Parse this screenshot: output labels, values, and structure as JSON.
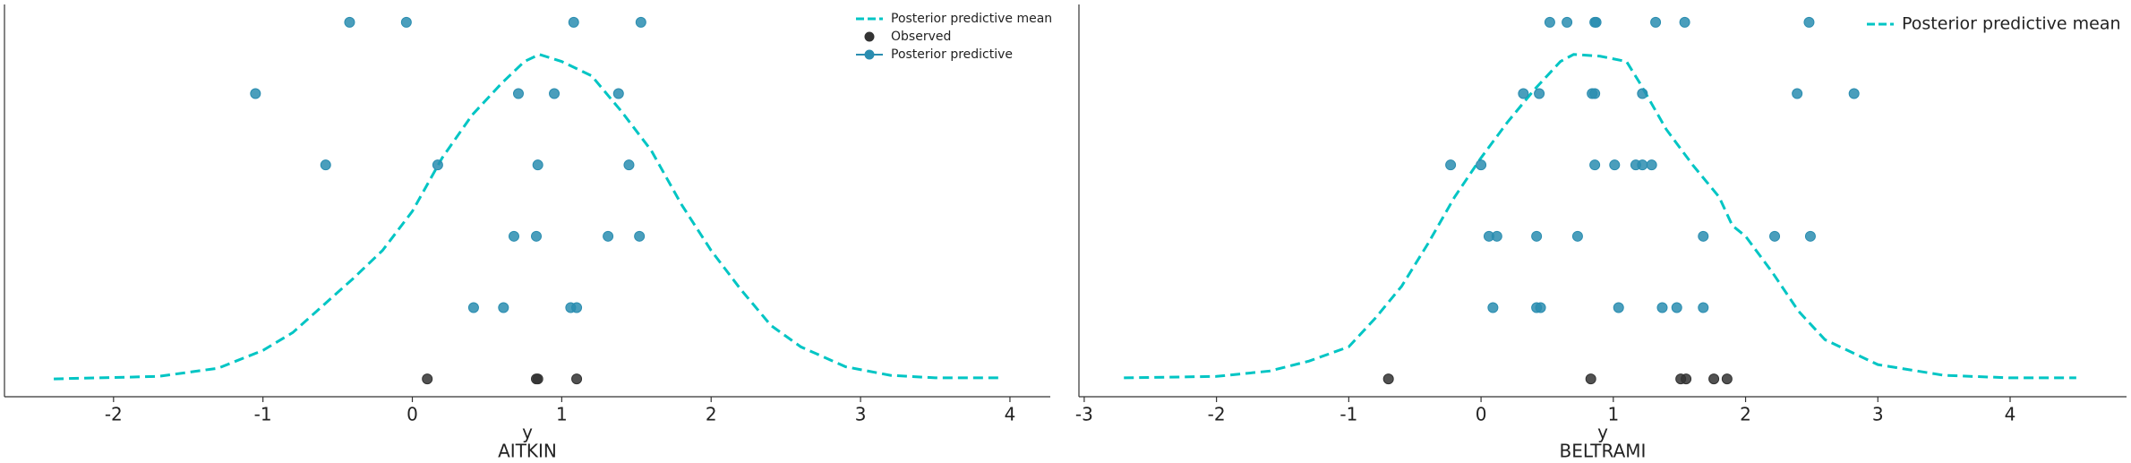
{
  "chart_data": [
    {
      "type": "scatter",
      "title": "AITKIN",
      "xlabel": "y",
      "xlim": [
        -2.73,
        4.27
      ],
      "ylim": [
        0,
        1.1
      ],
      "xticks": [
        -2,
        -1,
        0,
        1,
        2,
        3,
        4
      ],
      "series": [
        {
          "name": "Posterior predictive mean",
          "kind": "line",
          "color": "#00c5c4",
          "x": [
            -2.4,
            -1.7,
            -1.3,
            -1.0,
            -0.8,
            -0.6,
            -0.4,
            -0.2,
            0,
            0.2,
            0.4,
            0.6,
            0.75,
            0.85,
            1.0,
            1.2,
            1.4,
            1.6,
            1.8,
            2.0,
            2.2,
            2.4,
            2.6,
            2.9,
            3.2,
            3.5,
            3.95
          ],
          "y": [
            0.05,
            0.057,
            0.08,
            0.13,
            0.18,
            0.255,
            0.33,
            0.41,
            0.52,
            0.67,
            0.79,
            0.88,
            0.94,
            0.96,
            0.94,
            0.9,
            0.8,
            0.69,
            0.54,
            0.41,
            0.3,
            0.2,
            0.14,
            0.084,
            0.06,
            0.053,
            0.053
          ]
        },
        {
          "name": "Observed",
          "kind": "points",
          "color": "#333333",
          "legend_line": false,
          "x": [
            0.1,
            0.83,
            0.84,
            1.1
          ],
          "y": [
            0.05,
            0.05,
            0.05,
            0.05
          ]
        },
        {
          "name": "Posterior predictive",
          "kind": "points",
          "color": "#2a8db0",
          "legend_line": true,
          "x": [
            -0.42,
            -0.04,
            1.08,
            1.53,
            -1.05,
            0.71,
            0.95,
            1.38,
            -0.58,
            0.17,
            0.84,
            1.45,
            0.68,
            0.83,
            1.31,
            1.52,
            0.41,
            0.61,
            1.06,
            1.1
          ],
          "y": [
            1.05,
            1.05,
            1.05,
            1.05,
            0.85,
            0.85,
            0.85,
            0.85,
            0.65,
            0.65,
            0.65,
            0.65,
            0.45,
            0.45,
            0.45,
            0.45,
            0.25,
            0.25,
            0.25,
            0.25
          ]
        }
      ]
    },
    {
      "type": "scatter",
      "title": "BELTRAMI",
      "xlabel": "y",
      "xlim": [
        -3.04,
        4.88
      ],
      "ylim": [
        0,
        1.1
      ],
      "xticks": [
        -3,
        -2,
        -1,
        0,
        1,
        2,
        3,
        4
      ],
      "series": [
        {
          "name": "Posterior predictive mean",
          "kind": "line",
          "color": "#00c5c4",
          "x": [
            -2.7,
            -2.0,
            -1.6,
            -1.3,
            -1.0,
            -0.8,
            -0.6,
            -0.4,
            -0.2,
            0,
            0.2,
            0.4,
            0.6,
            0.7,
            0.9,
            1.1,
            1.2,
            1.4,
            1.6,
            1.8,
            1.9,
            2.0,
            2.2,
            2.4,
            2.6,
            3.0,
            3.5,
            4.0,
            4.5
          ],
          "y": [
            0.053,
            0.057,
            0.072,
            0.1,
            0.14,
            0.22,
            0.31,
            0.43,
            0.56,
            0.67,
            0.77,
            0.86,
            0.94,
            0.96,
            0.955,
            0.94,
            0.88,
            0.75,
            0.65,
            0.56,
            0.48,
            0.45,
            0.35,
            0.24,
            0.16,
            0.09,
            0.06,
            0.053,
            0.053
          ]
        },
        {
          "kind": "points",
          "color": "#333333",
          "x": [
            -0.7,
            0.83,
            1.51,
            1.55,
            1.76,
            1.86
          ],
          "y": [
            0.05,
            0.05,
            0.05,
            0.05,
            0.05,
            0.05
          ]
        },
        {
          "kind": "points",
          "color": "#2a8db0",
          "x": [
            0.52,
            0.65,
            0.86,
            0.87,
            1.32,
            1.54,
            2.48,
            0.32,
            0.44,
            0.84,
            0.86,
            1.22,
            2.39,
            2.82,
            -0.23,
            0.0,
            0.86,
            1.01,
            1.17,
            1.22,
            1.29,
            0.06,
            0.12,
            0.42,
            0.73,
            1.68,
            2.22,
            2.49,
            0.09,
            0.42,
            0.45,
            1.04,
            1.37,
            1.48,
            1.68
          ],
          "y": [
            1.05,
            1.05,
            1.05,
            1.05,
            1.05,
            1.05,
            1.05,
            0.85,
            0.85,
            0.85,
            0.85,
            0.85,
            0.85,
            0.85,
            0.65,
            0.65,
            0.65,
            0.65,
            0.65,
            0.65,
            0.65,
            0.45,
            0.45,
            0.45,
            0.45,
            0.45,
            0.45,
            0.45,
            0.25,
            0.25,
            0.25,
            0.25,
            0.25,
            0.25,
            0.25
          ]
        }
      ]
    }
  ]
}
